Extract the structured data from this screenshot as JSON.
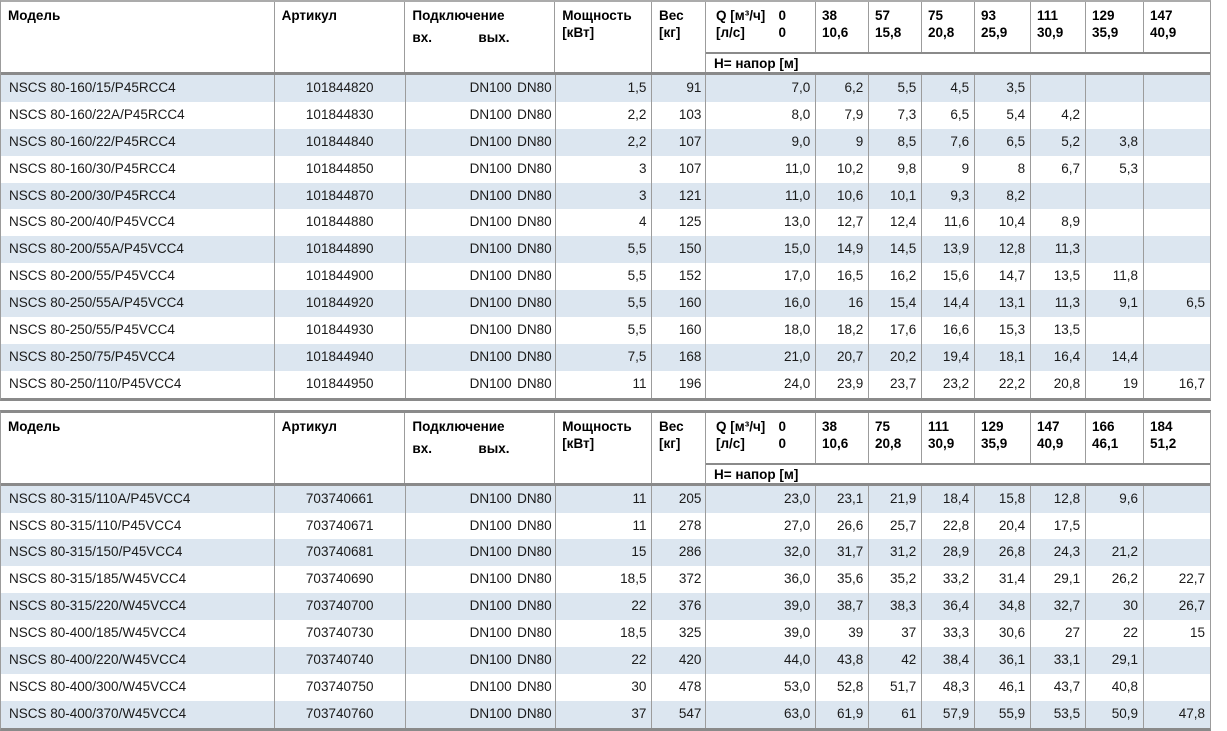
{
  "page": {
    "language": "ru",
    "content_kind": "pump-catalog-data-tables"
  },
  "colors": {
    "stripe_row": "#dce6f0",
    "grid_line": "#9c9c9c",
    "heavy_line": "#8a8a8a",
    "text": "#1a1a1a"
  },
  "tables": [
    {
      "header": {
        "model": "Модель",
        "article": "Артикул",
        "connection": "Подключение",
        "conn_in": "вх.",
        "conn_out": "вых.",
        "power_l1": "Мощность",
        "power_l2": "[кВт]",
        "weight_l1": "Вес",
        "weight_l2": "[кг]",
        "q_flow_label": "Q [м³/ч]",
        "q_flow_zero": "0",
        "q_ls_label": "[л/с]",
        "q_ls_zero": "0",
        "q_cols": [
          [
            "38",
            "10,6"
          ],
          [
            "57",
            "15,8"
          ],
          [
            "75",
            "20,8"
          ],
          [
            "93",
            "25,9"
          ],
          [
            "111",
            "30,9"
          ],
          [
            "129",
            "35,9"
          ],
          [
            "147",
            "40,9"
          ]
        ],
        "h_label": "H= напор [м]"
      },
      "rows": [
        {
          "model": "NSCS 80-160/15/P45RCC4",
          "article": "101844820",
          "conn_in": "DN100",
          "conn_out": "DN80",
          "power": "1,5",
          "weight": "91",
          "h": [
            "7,0",
            "6,2",
            "5,5",
            "4,5",
            "3,5",
            "",
            "",
            ""
          ]
        },
        {
          "model": "NSCS 80-160/22A/P45RCC4",
          "article": "101844830",
          "conn_in": "DN100",
          "conn_out": "DN80",
          "power": "2,2",
          "weight": "103",
          "h": [
            "8,0",
            "7,9",
            "7,3",
            "6,5",
            "5,4",
            "4,2",
            "",
            ""
          ]
        },
        {
          "model": "NSCS 80-160/22/P45RCC4",
          "article": "101844840",
          "conn_in": "DN100",
          "conn_out": "DN80",
          "power": "2,2",
          "weight": "107",
          "h": [
            "9,0",
            "9",
            "8,5",
            "7,6",
            "6,5",
            "5,2",
            "3,8",
            ""
          ]
        },
        {
          "model": "NSCS 80-160/30/P45RCC4",
          "article": "101844850",
          "conn_in": "DN100",
          "conn_out": "DN80",
          "power": "3",
          "weight": "107",
          "h": [
            "11,0",
            "10,2",
            "9,8",
            "9",
            "8",
            "6,7",
            "5,3",
            ""
          ]
        },
        {
          "model": "NSCS 80-200/30/P45RCC4",
          "article": "101844870",
          "conn_in": "DN100",
          "conn_out": "DN80",
          "power": "3",
          "weight": "121",
          "h": [
            "11,0",
            "10,6",
            "10,1",
            "9,3",
            "8,2",
            "",
            "",
            ""
          ]
        },
        {
          "model": "NSCS 80-200/40/P45VCC4",
          "article": "101844880",
          "conn_in": "DN100",
          "conn_out": "DN80",
          "power": "4",
          "weight": "125",
          "h": [
            "13,0",
            "12,7",
            "12,4",
            "11,6",
            "10,4",
            "8,9",
            "",
            ""
          ]
        },
        {
          "model": "NSCS 80-200/55A/P45VCC4",
          "article": "101844890",
          "conn_in": "DN100",
          "conn_out": "DN80",
          "power": "5,5",
          "weight": "150",
          "h": [
            "15,0",
            "14,9",
            "14,5",
            "13,9",
            "12,8",
            "11,3",
            "",
            ""
          ]
        },
        {
          "model": "NSCS 80-200/55/P45VCC4",
          "article": "101844900",
          "conn_in": "DN100",
          "conn_out": "DN80",
          "power": "5,5",
          "weight": "152",
          "h": [
            "17,0",
            "16,5",
            "16,2",
            "15,6",
            "14,7",
            "13,5",
            "11,8",
            ""
          ]
        },
        {
          "model": "NSCS 80-250/55A/P45VCC4",
          "article": "101844920",
          "conn_in": "DN100",
          "conn_out": "DN80",
          "power": "5,5",
          "weight": "160",
          "h": [
            "16,0",
            "16",
            "15,4",
            "14,4",
            "13,1",
            "11,3",
            "9,1",
            "6,5"
          ]
        },
        {
          "model": "NSCS 80-250/55/P45VCC4",
          "article": "101844930",
          "conn_in": "DN100",
          "conn_out": "DN80",
          "power": "5,5",
          "weight": "160",
          "h": [
            "18,0",
            "18,2",
            "17,6",
            "16,6",
            "15,3",
            "13,5",
            "",
            ""
          ]
        },
        {
          "model": "NSCS 80-250/75/P45VCC4",
          "article": "101844940",
          "conn_in": "DN100",
          "conn_out": "DN80",
          "power": "7,5",
          "weight": "168",
          "h": [
            "21,0",
            "20,7",
            "20,2",
            "19,4",
            "18,1",
            "16,4",
            "14,4",
            ""
          ]
        },
        {
          "model": "NSCS 80-250/110/P45VCC4",
          "article": "101844950",
          "conn_in": "DN100",
          "conn_out": "DN80",
          "power": "11",
          "weight": "196",
          "h": [
            "24,0",
            "23,9",
            "23,7",
            "23,2",
            "22,2",
            "20,8",
            "19",
            "16,7"
          ]
        }
      ]
    },
    {
      "header": {
        "model": "Модель",
        "article": "Артикул",
        "connection": "Подключение",
        "conn_in": "вх.",
        "conn_out": "вых.",
        "power_l1": "Мощность",
        "power_l2": "[кВт]",
        "weight_l1": "Вес",
        "weight_l2": "[кг]",
        "q_flow_label": "Q [м³/ч]",
        "q_flow_zero": "0",
        "q_ls_label": "[л/с]",
        "q_ls_zero": "0",
        "q_cols": [
          [
            "38",
            "10,6"
          ],
          [
            "75",
            "20,8"
          ],
          [
            "111",
            "30,9"
          ],
          [
            "129",
            "35,9"
          ],
          [
            "147",
            "40,9"
          ],
          [
            "166",
            "46,1"
          ],
          [
            "184",
            "51,2"
          ]
        ],
        "h_label": "H= напор [м]"
      },
      "rows": [
        {
          "model": "NSCS 80-315/110A/P45VCC4",
          "article": "703740661",
          "conn_in": "DN100",
          "conn_out": "DN80",
          "power": "11",
          "weight": "205",
          "h": [
            "23,0",
            "23,1",
            "21,9",
            "18,4",
            "15,8",
            "12,8",
            "9,6",
            ""
          ]
        },
        {
          "model": "NSCS 80-315/110/P45VCC4",
          "article": "703740671",
          "conn_in": "DN100",
          "conn_out": "DN80",
          "power": "11",
          "weight": "278",
          "h": [
            "27,0",
            "26,6",
            "25,7",
            "22,8",
            "20,4",
            "17,5",
            "",
            ""
          ]
        },
        {
          "model": "NSCS 80-315/150/P45VCC4",
          "article": "703740681",
          "conn_in": "DN100",
          "conn_out": "DN80",
          "power": "15",
          "weight": "286",
          "h": [
            "32,0",
            "31,7",
            "31,2",
            "28,9",
            "26,8",
            "24,3",
            "21,2",
            ""
          ]
        },
        {
          "model": "NSCS 80-315/185/W45VCC4",
          "article": "703740690",
          "conn_in": "DN100",
          "conn_out": "DN80",
          "power": "18,5",
          "weight": "372",
          "h": [
            "36,0",
            "35,6",
            "35,2",
            "33,2",
            "31,4",
            "29,1",
            "26,2",
            "22,7"
          ]
        },
        {
          "model": "NSCS 80-315/220/W45VCC4",
          "article": "703740700",
          "conn_in": "DN100",
          "conn_out": "DN80",
          "power": "22",
          "weight": "376",
          "h": [
            "39,0",
            "38,7",
            "38,3",
            "36,4",
            "34,8",
            "32,7",
            "30",
            "26,7"
          ]
        },
        {
          "model": "NSCS 80-400/185/W45VCC4",
          "article": "703740730",
          "conn_in": "DN100",
          "conn_out": "DN80",
          "power": "18,5",
          "weight": "325",
          "h": [
            "39,0",
            "39",
            "37",
            "33,3",
            "30,6",
            "27",
            "22",
            "15"
          ]
        },
        {
          "model": "NSCS 80-400/220/W45VCC4",
          "article": "703740740",
          "conn_in": "DN100",
          "conn_out": "DN80",
          "power": "22",
          "weight": "420",
          "h": [
            "44,0",
            "43,8",
            "42",
            "38,4",
            "36,1",
            "33,1",
            "29,1",
            ""
          ]
        },
        {
          "model": "NSCS 80-400/300/W45VCC4",
          "article": "703740750",
          "conn_in": "DN100",
          "conn_out": "DN80",
          "power": "30",
          "weight": "478",
          "h": [
            "53,0",
            "52,8",
            "51,7",
            "48,3",
            "46,1",
            "43,7",
            "40,8",
            ""
          ]
        },
        {
          "model": "NSCS 80-400/370/W45VCC4",
          "article": "703740760",
          "conn_in": "DN100",
          "conn_out": "DN80",
          "power": "37",
          "weight": "547",
          "h": [
            "63,0",
            "61,9",
            "61",
            "57,9",
            "55,9",
            "53,5",
            "50,9",
            "47,8"
          ]
        }
      ]
    }
  ]
}
